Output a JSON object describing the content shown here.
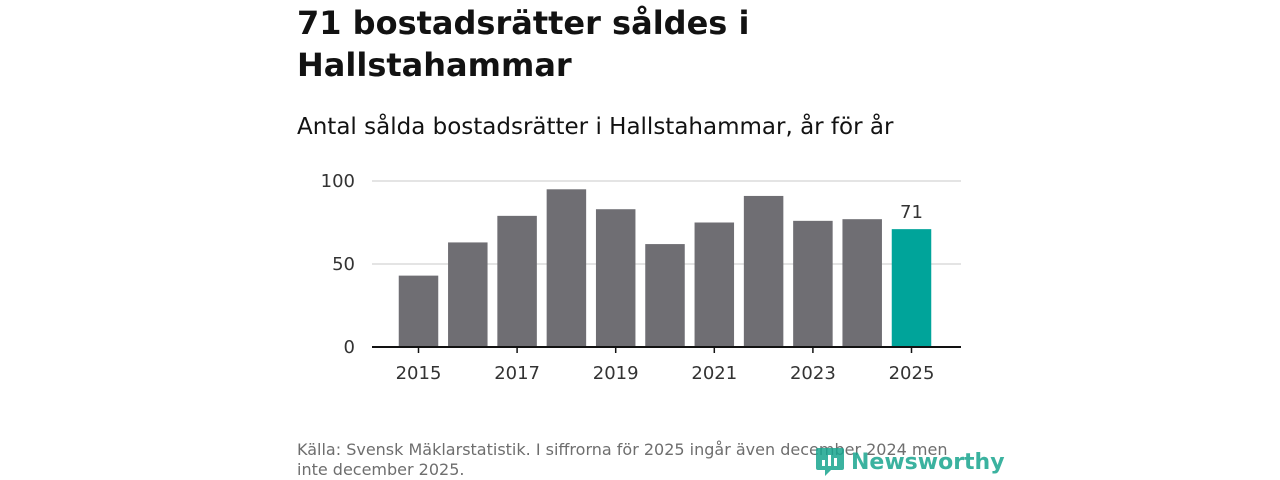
{
  "header": {
    "title": "71 bostadsrätter såldes i Hallstahammar",
    "subtitle": "Antal sålda bostadsrätter i Hallstahammar, år för år"
  },
  "footer": {
    "source": "Källa: Svensk Mäklarstatistik. I siffrorna för 2025 ingår även december 2024 men inte december 2025.",
    "brand": "Newsworthy",
    "brand_icon": "newsworthy-logo-icon"
  },
  "colors": {
    "bar": "#6f6e73",
    "highlight": "#00a49a",
    "grid": "#dcdcdc",
    "axis": "#121212",
    "brand": "#1aa58f"
  },
  "chart_data": {
    "type": "bar",
    "title": "Antal sålda bostadsrätter i Hallstahammar, år för år",
    "xlabel": "",
    "ylabel": "",
    "categories": [
      "2015",
      "2016",
      "2017",
      "2018",
      "2019",
      "2020",
      "2021",
      "2022",
      "2023",
      "2024",
      "2025"
    ],
    "values": [
      43,
      63,
      79,
      95,
      83,
      62,
      75,
      91,
      76,
      77,
      71
    ],
    "highlight_index": 10,
    "data_labels": [
      {
        "index": 10,
        "text": "71"
      }
    ],
    "x_tick_labels": [
      "2015",
      "2017",
      "2019",
      "2021",
      "2023",
      "2025"
    ],
    "y_ticks": [
      0,
      50,
      100
    ],
    "ylim": [
      0,
      100
    ],
    "grid": true
  }
}
